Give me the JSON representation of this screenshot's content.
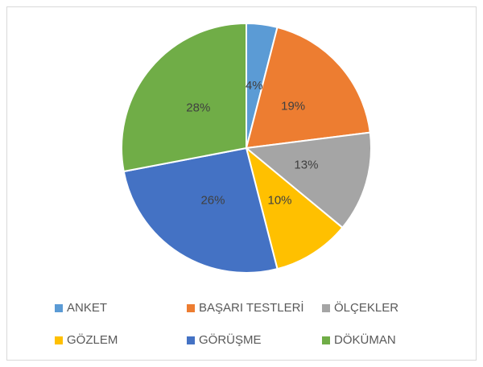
{
  "chart_data": {
    "type": "pie",
    "categories": [
      "ANKET",
      "BAŞARI TESTLERİ",
      "ÖLÇEKLER",
      "GÖZLEM",
      "GÖRÜŞME",
      "DÖKÜMAN"
    ],
    "values": [
      4,
      19,
      13,
      10,
      26,
      28
    ],
    "value_labels": [
      "4%",
      "19%",
      "13%",
      "10%",
      "26%",
      "28%"
    ],
    "colors": [
      "#5B9BD5",
      "#ED7D31",
      "#A5A5A5",
      "#FFC000",
      "#4472C4",
      "#70AD47"
    ],
    "legend": "bottom"
  }
}
